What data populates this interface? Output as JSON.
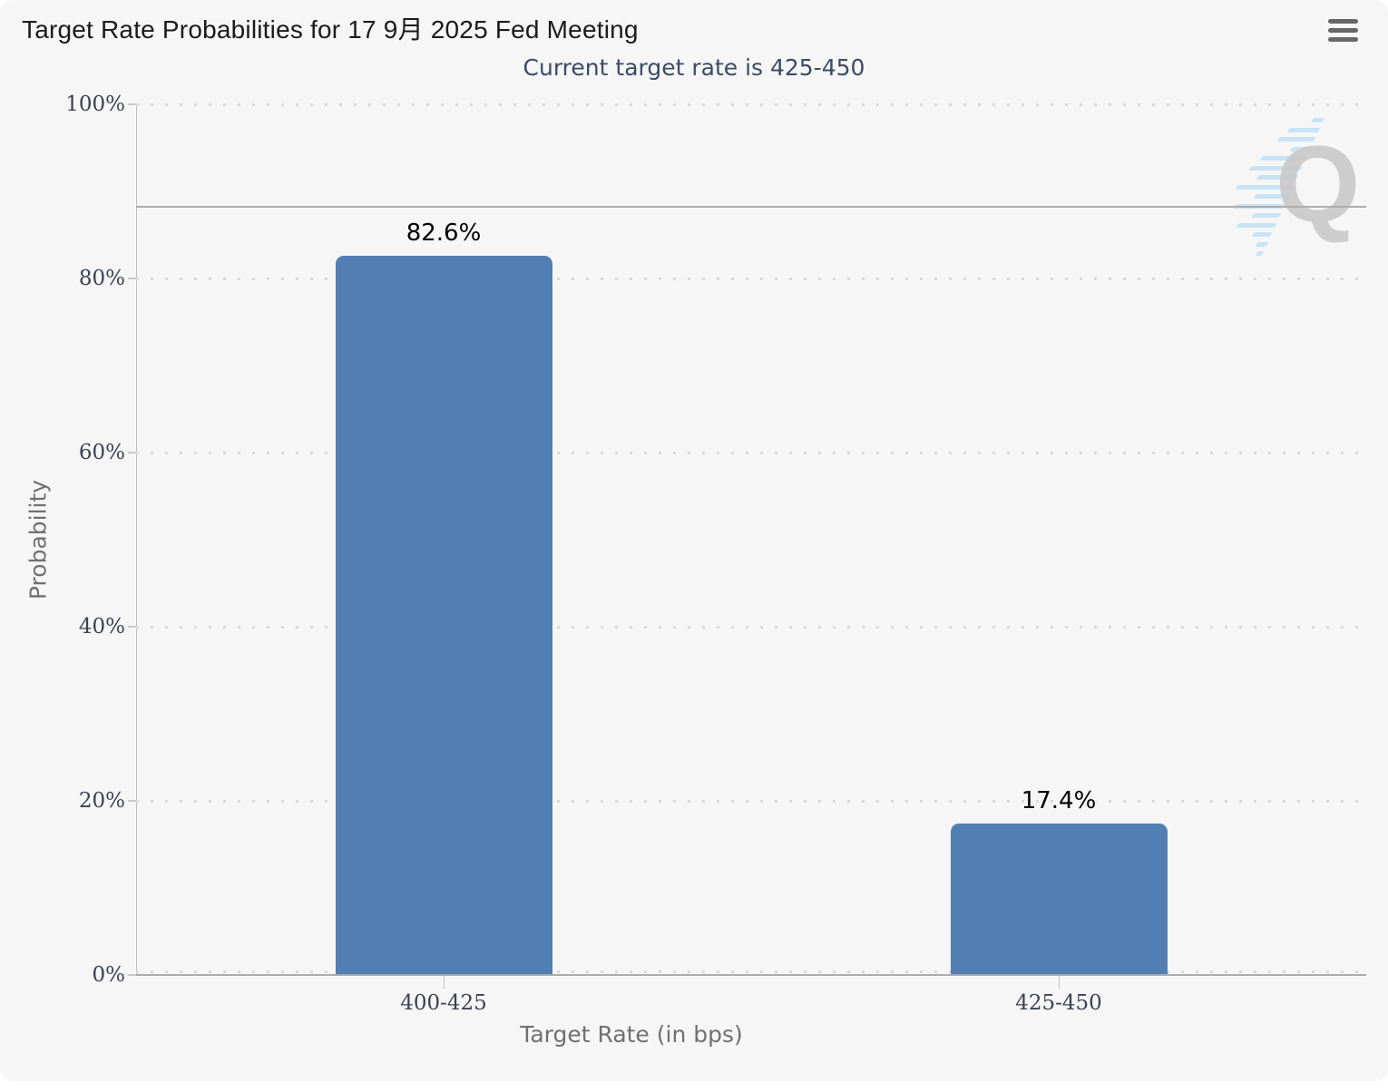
{
  "header": {
    "title": "Target Rate Probabilities for 17 9月 2025 Fed Meeting",
    "menu_icon": "hamburger-icon"
  },
  "chart_data": {
    "type": "bar",
    "title": "Target Rate Probabilities for 17 9月 2025 Fed Meeting",
    "subtitle": "Current target rate is 425-450",
    "categories": [
      "400-425",
      "425-450"
    ],
    "values": [
      82.6,
      17.4
    ],
    "value_labels": [
      "82.6%",
      "17.4%"
    ],
    "xlabel": "Target Rate (in bps)",
    "ylabel": "Probability",
    "ylim": [
      0,
      100
    ],
    "ytick_step": 20,
    "ytick_labels": [
      "0%",
      "20%",
      "40%",
      "60%",
      "80%",
      "100%"
    ],
    "grid": "dotted-horizontal",
    "legend": "none",
    "reference_line_percent": 88.2,
    "watermark_letter": "Q"
  },
  "colors": {
    "card_background": "#f6f6f6",
    "bar_fill": "#527fb3",
    "title_text": "#1b1b1b",
    "subtitle_text": "#3d4b66",
    "tick_text": "#3b4252",
    "axis_title_text": "#707070",
    "grid_dot": "#d9d9d9",
    "axis_line": "#ababab",
    "watermark_gray": "#c7c7c7",
    "watermark_blue": "#badcf5"
  }
}
